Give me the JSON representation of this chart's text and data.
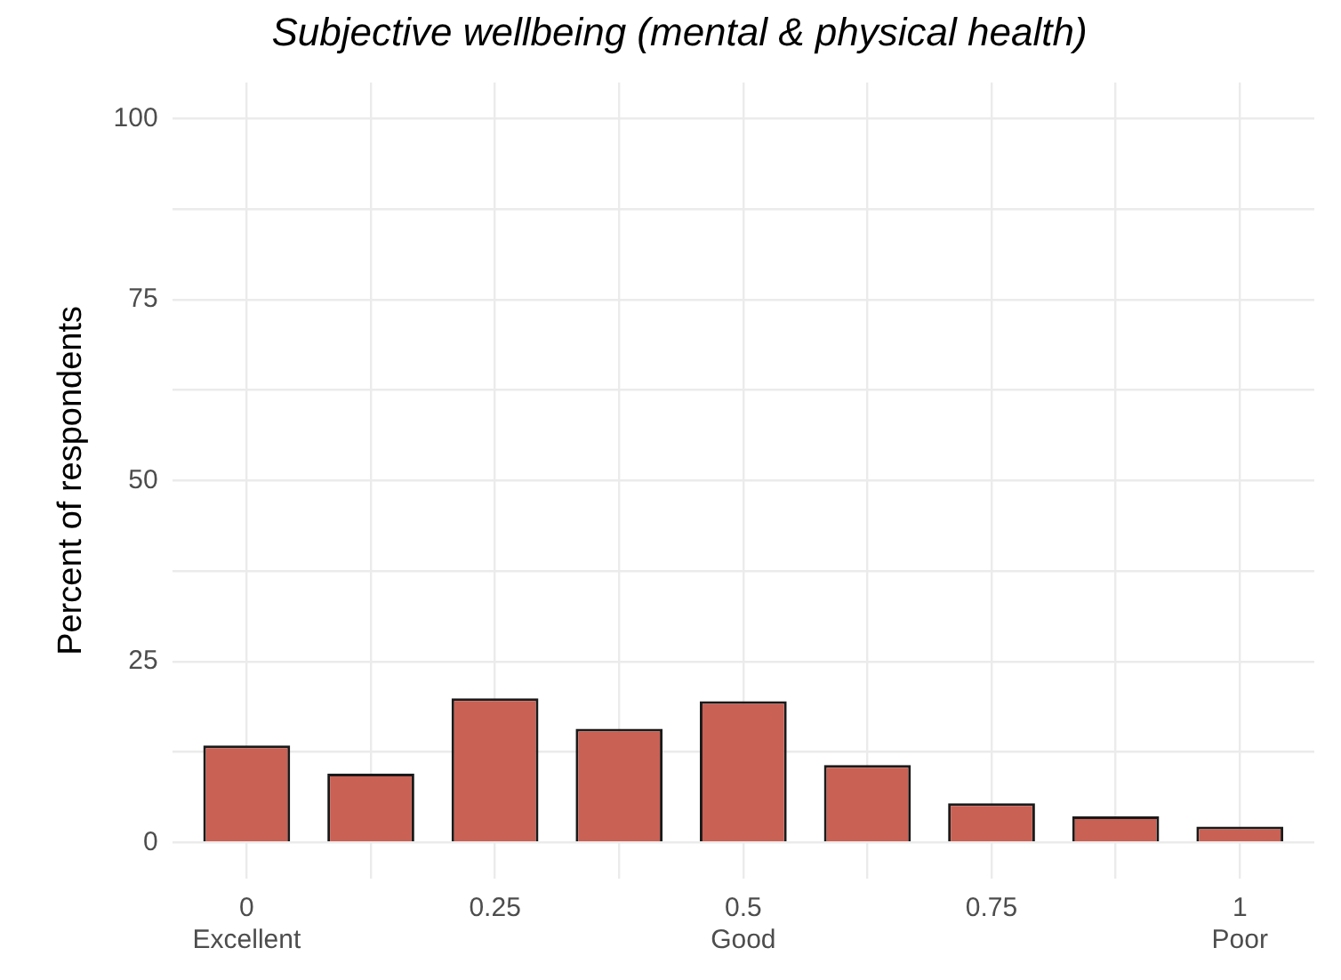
{
  "chart_data": {
    "type": "bar",
    "title": "Subjective wellbeing (mental & physical health)",
    "ylabel": "Percent of respondents",
    "x": [
      0,
      0.125,
      0.25,
      0.375,
      0.5,
      0.625,
      0.75,
      0.875,
      1
    ],
    "values": [
      13.4,
      9.5,
      19.9,
      15.7,
      19.5,
      10.7,
      5.4,
      3.6,
      2.2
    ],
    "color": "#c96155",
    "xlim": [
      -0.075,
      1.075
    ],
    "xticks": [
      {
        "value": 0,
        "label": "0\nExcellent"
      },
      {
        "value": 0.125,
        "label": null
      },
      0.25,
      {
        "value": 0.375,
        "label": null
      },
      {
        "value": 0.5,
        "label": "0.5\nGood"
      },
      {
        "value": 0.625,
        "label": null
      },
      0.75,
      {
        "value": 0.875,
        "label": null
      },
      {
        "value": 1,
        "label": "1\nPoor"
      }
    ],
    "ylim": [
      -5,
      105
    ],
    "yticks": [
      0,
      {
        "value": 12.5,
        "label": null
      },
      25,
      {
        "value": 37.5,
        "label": null
      },
      50,
      {
        "value": 62.5,
        "label": null
      },
      75,
      {
        "value": 87.5,
        "label": null
      },
      100
    ],
    "grid": true,
    "legend": false
  }
}
